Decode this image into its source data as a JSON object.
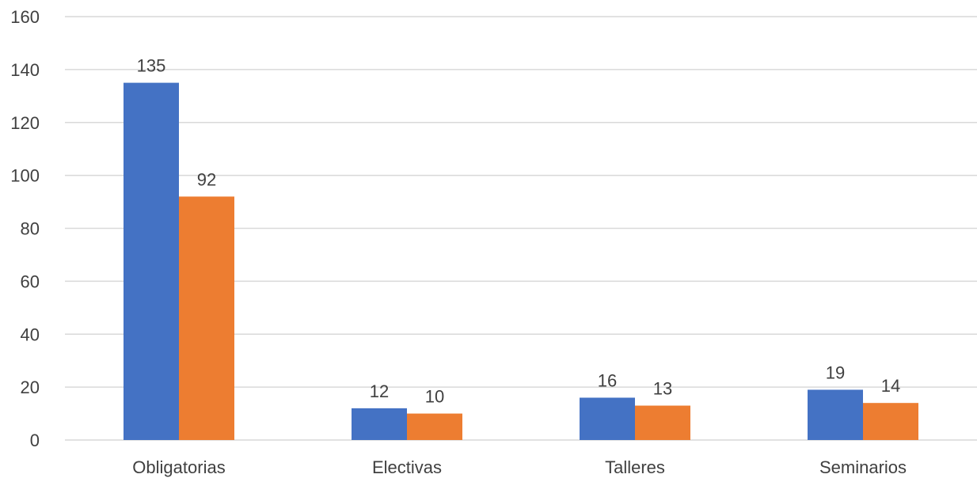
{
  "chart_data": {
    "type": "bar",
    "title": "",
    "xlabel": "",
    "ylabel": "",
    "categories": [
      "Obligatorias",
      "Electivas",
      "Talleres",
      "Seminarios"
    ],
    "series": [
      {
        "values": [
          135,
          12,
          16,
          19
        ],
        "color": "#4472C4"
      },
      {
        "values": [
          92,
          10,
          13,
          14
        ],
        "color": "#ED7D31"
      }
    ],
    "ylim": [
      0,
      160
    ],
    "yticks": [
      0,
      20,
      40,
      60,
      80,
      100,
      120,
      140,
      160
    ],
    "grid": true,
    "legend": "none",
    "data_labels": true
  }
}
